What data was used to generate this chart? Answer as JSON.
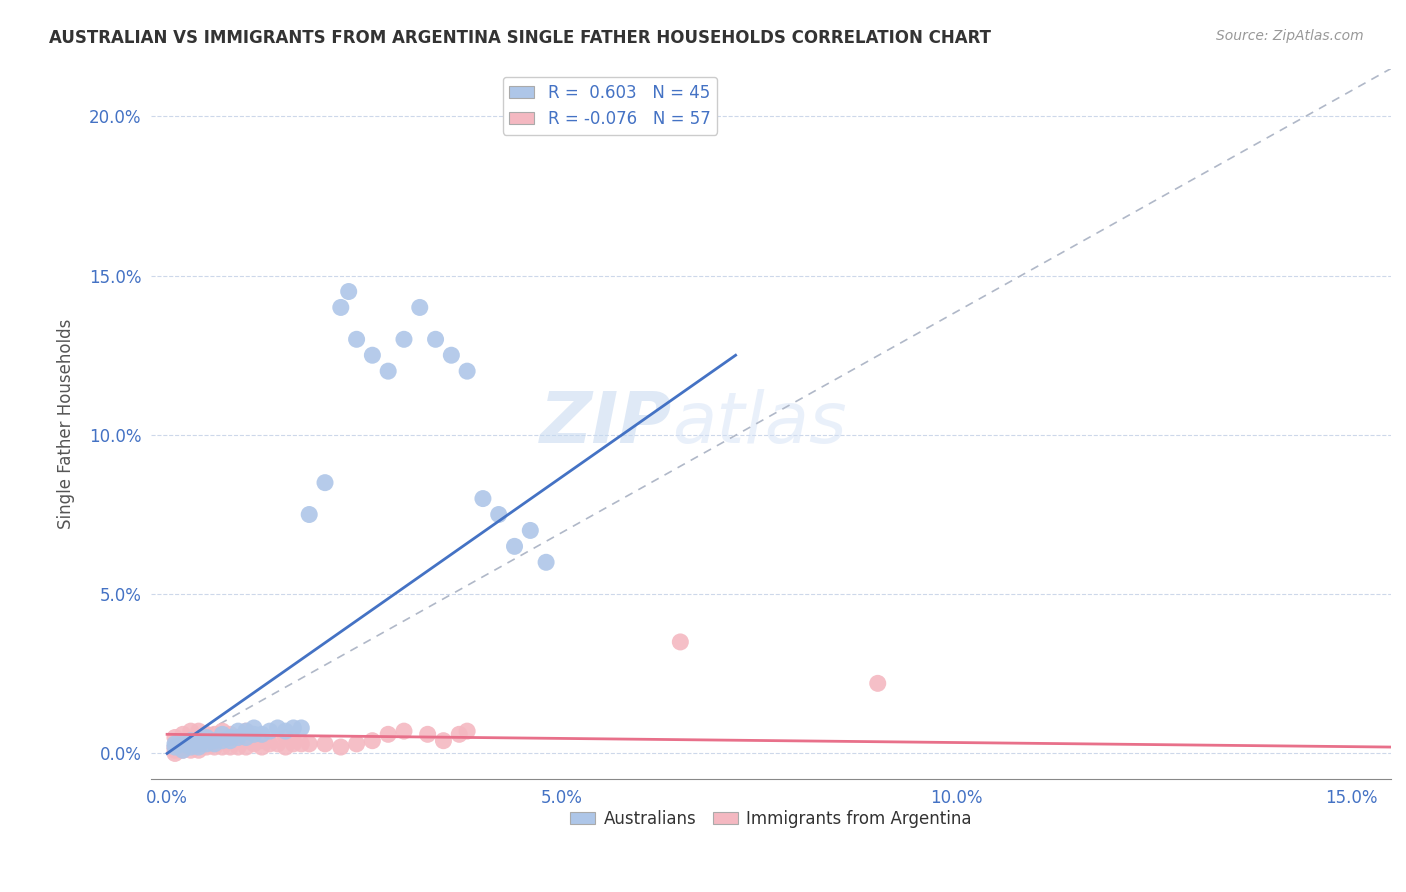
{
  "title": "AUSTRALIAN VS IMMIGRANTS FROM ARGENTINA SINGLE FATHER HOUSEHOLDS CORRELATION CHART",
  "source": "Source: ZipAtlas.com",
  "ylabel_label": "Single Father Households",
  "xlim": [
    0.0,
    0.155
  ],
  "ylim": [
    -0.008,
    0.215
  ],
  "legend_R_australian": "R =  0.603",
  "legend_N_australian": "N = 45",
  "legend_R_argentina": "R = -0.076",
  "legend_N_argentina": "N = 57",
  "australian_color": "#aec6e8",
  "argentina_color": "#f4b8c1",
  "australian_line_color": "#4472c4",
  "argentina_line_color": "#e8708a",
  "diag_line_color": "#b0b8c8",
  "aus_line_x": [
    0.0,
    0.072
  ],
  "aus_line_y": [
    0.0,
    0.125
  ],
  "arg_line_x": [
    0.0,
    0.155
  ],
  "arg_line_y": [
    0.006,
    0.002
  ],
  "australian_scatter": [
    [
      0.001,
      0.002
    ],
    [
      0.001,
      0.003
    ],
    [
      0.002,
      0.001
    ],
    [
      0.002,
      0.003
    ],
    [
      0.003,
      0.002
    ],
    [
      0.003,
      0.004
    ],
    [
      0.004,
      0.002
    ],
    [
      0.004,
      0.003
    ],
    [
      0.005,
      0.003
    ],
    [
      0.005,
      0.005
    ],
    [
      0.006,
      0.003
    ],
    [
      0.006,
      0.004
    ],
    [
      0.007,
      0.004
    ],
    [
      0.007,
      0.006
    ],
    [
      0.008,
      0.004
    ],
    [
      0.008,
      0.005
    ],
    [
      0.009,
      0.005
    ],
    [
      0.009,
      0.007
    ],
    [
      0.01,
      0.005
    ],
    [
      0.01,
      0.007
    ],
    [
      0.011,
      0.006
    ],
    [
      0.011,
      0.008
    ],
    [
      0.012,
      0.006
    ],
    [
      0.013,
      0.007
    ],
    [
      0.014,
      0.008
    ],
    [
      0.015,
      0.007
    ],
    [
      0.016,
      0.008
    ],
    [
      0.017,
      0.008
    ],
    [
      0.018,
      0.075
    ],
    [
      0.02,
      0.085
    ],
    [
      0.022,
      0.14
    ],
    [
      0.023,
      0.145
    ],
    [
      0.024,
      0.13
    ],
    [
      0.026,
      0.125
    ],
    [
      0.028,
      0.12
    ],
    [
      0.03,
      0.13
    ],
    [
      0.032,
      0.14
    ],
    [
      0.034,
      0.13
    ],
    [
      0.036,
      0.125
    ],
    [
      0.038,
      0.12
    ],
    [
      0.04,
      0.08
    ],
    [
      0.042,
      0.075
    ],
    [
      0.044,
      0.065
    ],
    [
      0.046,
      0.07
    ],
    [
      0.048,
      0.06
    ]
  ],
  "argentina_scatter": [
    [
      0.001,
      0.0
    ],
    [
      0.001,
      0.001
    ],
    [
      0.001,
      0.002
    ],
    [
      0.001,
      0.005
    ],
    [
      0.002,
      0.001
    ],
    [
      0.002,
      0.002
    ],
    [
      0.002,
      0.003
    ],
    [
      0.002,
      0.006
    ],
    [
      0.003,
      0.001
    ],
    [
      0.003,
      0.003
    ],
    [
      0.003,
      0.004
    ],
    [
      0.003,
      0.007
    ],
    [
      0.004,
      0.001
    ],
    [
      0.004,
      0.003
    ],
    [
      0.004,
      0.005
    ],
    [
      0.004,
      0.007
    ],
    [
      0.005,
      0.002
    ],
    [
      0.005,
      0.004
    ],
    [
      0.005,
      0.006
    ],
    [
      0.006,
      0.002
    ],
    [
      0.006,
      0.004
    ],
    [
      0.006,
      0.006
    ],
    [
      0.007,
      0.002
    ],
    [
      0.007,
      0.004
    ],
    [
      0.007,
      0.007
    ],
    [
      0.008,
      0.002
    ],
    [
      0.008,
      0.004
    ],
    [
      0.008,
      0.006
    ],
    [
      0.009,
      0.002
    ],
    [
      0.009,
      0.005
    ],
    [
      0.01,
      0.002
    ],
    [
      0.01,
      0.004
    ],
    [
      0.01,
      0.007
    ],
    [
      0.011,
      0.003
    ],
    [
      0.011,
      0.005
    ],
    [
      0.012,
      0.002
    ],
    [
      0.012,
      0.004
    ],
    [
      0.013,
      0.003
    ],
    [
      0.014,
      0.003
    ],
    [
      0.015,
      0.002
    ],
    [
      0.015,
      0.005
    ],
    [
      0.016,
      0.003
    ],
    [
      0.016,
      0.004
    ],
    [
      0.017,
      0.003
    ],
    [
      0.018,
      0.003
    ],
    [
      0.02,
      0.003
    ],
    [
      0.022,
      0.002
    ],
    [
      0.024,
      0.003
    ],
    [
      0.026,
      0.004
    ],
    [
      0.028,
      0.006
    ],
    [
      0.03,
      0.007
    ],
    [
      0.033,
      0.006
    ],
    [
      0.035,
      0.004
    ],
    [
      0.037,
      0.006
    ],
    [
      0.038,
      0.007
    ],
    [
      0.065,
      0.035
    ],
    [
      0.09,
      0.022
    ]
  ]
}
